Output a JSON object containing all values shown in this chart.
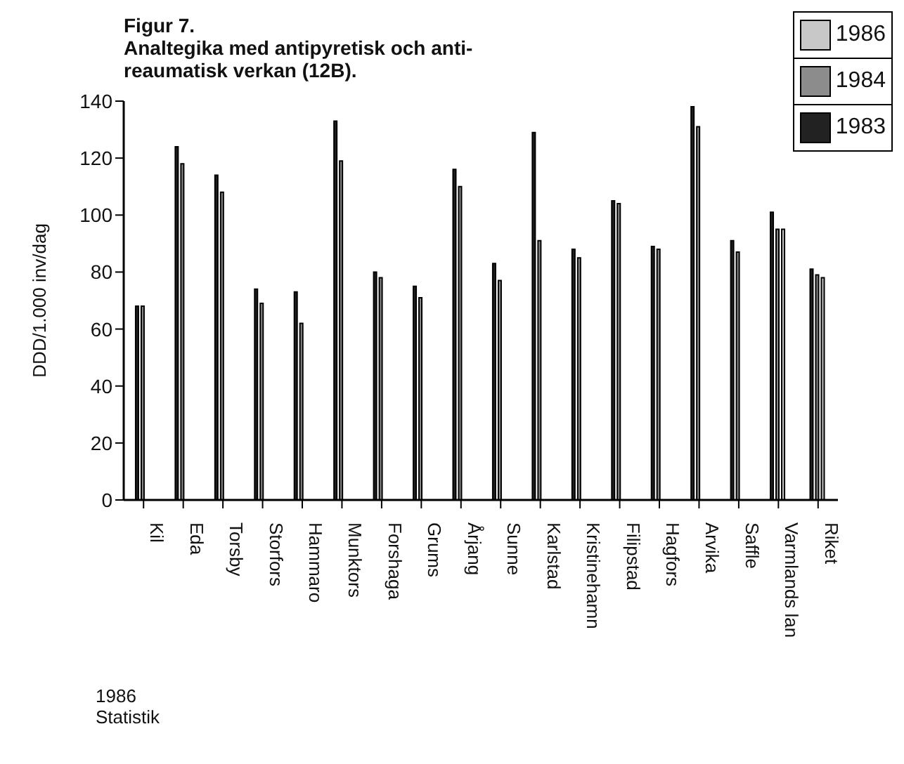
{
  "chart_data": {
    "type": "bar",
    "title": "Figur 7.",
    "subtitle": "Analtegika med antipyretisk och anti-\nreaumatisk verkan (12B).",
    "ylabel": "DDD/1.000 inv/dag",
    "categories": [
      "Kil",
      "Eda",
      "Torsby",
      "Storfors",
      "Hammaro",
      "Munktors",
      "Forshaga",
      "Grums",
      "Årjang",
      "Sunne",
      "Karlstad",
      "Kristinehamn",
      "Filipstad",
      "Hagfors",
      "Arvika",
      "Saffle",
      "Varmlands lan",
      "Riket"
    ],
    "series": [
      {
        "name": "1983",
        "color": "#222222",
        "values": [
          68,
          124,
          114,
          74,
          73,
          133,
          80,
          75,
          116,
          83,
          129,
          88,
          105,
          89,
          138,
          91,
          101,
          81
        ]
      },
      {
        "name": "1984",
        "color": "#8c8c8c",
        "values": [
          68,
          118,
          108,
          69,
          62,
          119,
          78,
          71,
          110,
          77,
          91,
          85,
          104,
          88,
          131,
          87,
          95,
          79
        ]
      },
      {
        "name": "1986",
        "color": "#c8c8c8",
        "values": [
          null,
          null,
          null,
          null,
          null,
          null,
          null,
          null,
          null,
          null,
          null,
          null,
          null,
          null,
          null,
          null,
          95,
          78
        ]
      }
    ],
    "ylim": [
      0,
      140
    ],
    "yticks": [
      0,
      20,
      40,
      60,
      80,
      100,
      120,
      140
    ],
    "legend": "top right",
    "annotations": [
      "1986\nStatistik"
    ]
  }
}
